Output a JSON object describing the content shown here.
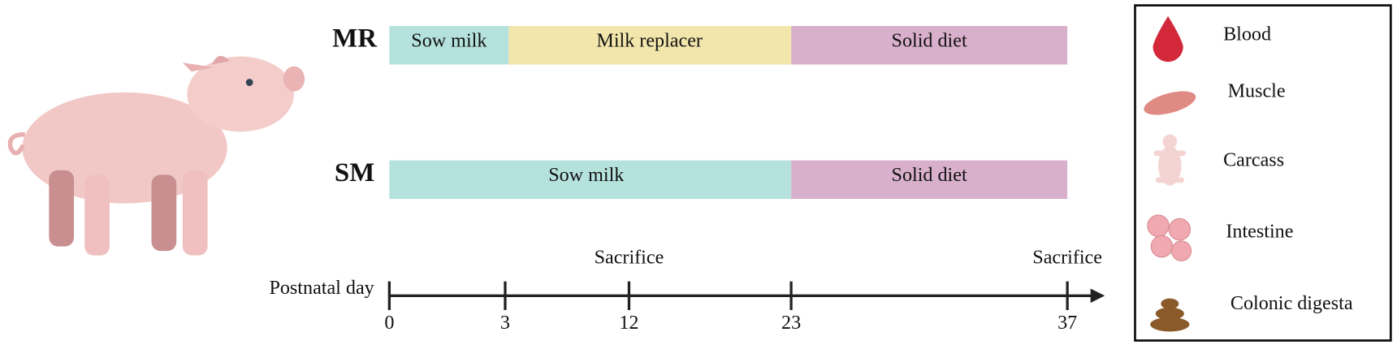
{
  "groups": [
    {
      "label": "MR",
      "segments": [
        "Sow milk",
        "Milk replacer",
        "Solid diet"
      ]
    },
    {
      "label": "SM",
      "segments": [
        "Sow milk",
        "Solid diet"
      ]
    }
  ],
  "timeline": {
    "axis_label": "Postnatal day",
    "ticks": [
      0,
      3,
      12,
      23,
      37
    ],
    "events": [
      "Sacrifice",
      "Sacrifice"
    ]
  },
  "legend": [
    "Blood",
    "Muscle",
    "Carcass",
    "Intestine",
    "Colonic digesta"
  ]
}
